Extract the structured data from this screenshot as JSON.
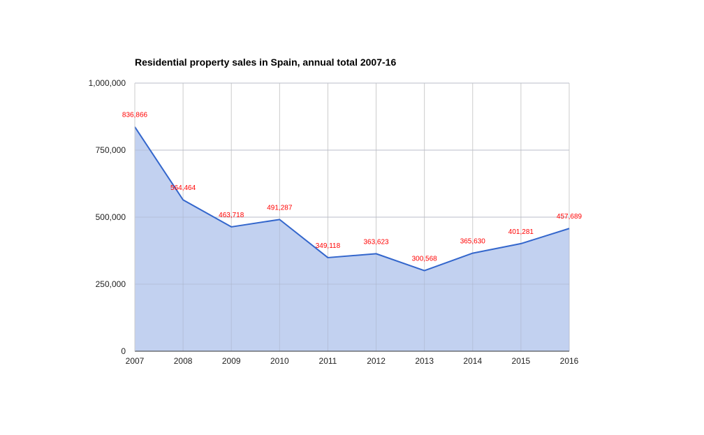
{
  "chart_data": {
    "type": "area",
    "title": "Residential property sales in Spain, annual total 2007-16",
    "xlabel": "",
    "ylabel": "",
    "x": [
      "2007",
      "2008",
      "2009",
      "2010",
      "2011",
      "2012",
      "2013",
      "2014",
      "2015",
      "2016"
    ],
    "series": [
      {
        "values": [
          836866,
          564464,
          463718,
          491287,
          349118,
          363623,
          300568,
          365630,
          401281,
          457689
        ]
      }
    ],
    "data_labels": [
      "836,866",
      "564,464",
      "463,718",
      "491,287",
      "349,118",
      "363,623",
      "300,568",
      "365,630",
      "401,281",
      "457,689"
    ],
    "ylim": [
      0,
      1000000
    ],
    "yticks": [
      0,
      250000,
      500000,
      750000,
      1000000
    ],
    "ytick_labels": [
      "0",
      "250,000",
      "500,000",
      "750,000",
      "1,000,000"
    ],
    "grid": true,
    "legend": "none",
    "colors": {
      "line": "#3366cc",
      "fill": "#c2d1f0",
      "data_label": "#ff0000",
      "grid": "#cccccc",
      "axis": "#333333"
    }
  }
}
